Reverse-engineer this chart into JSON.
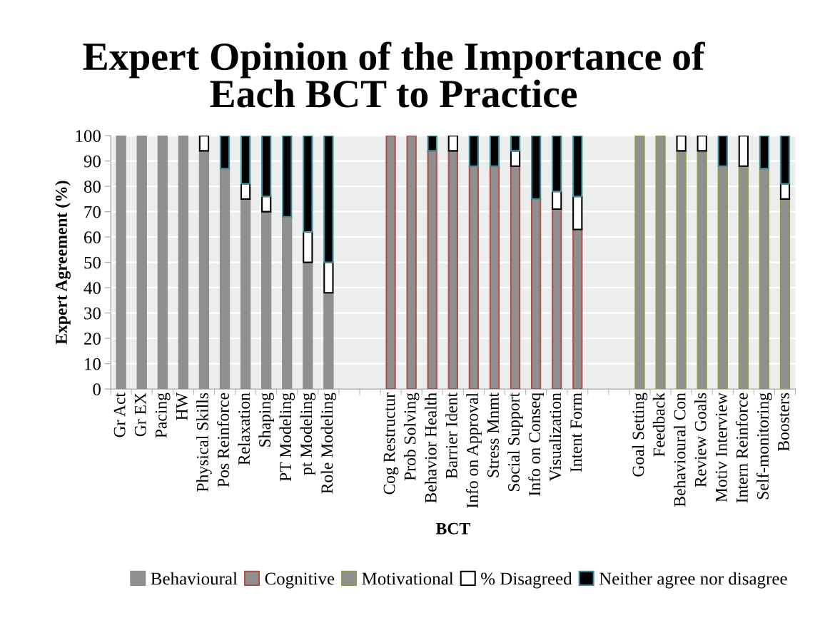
{
  "chart_data": {
    "type": "bar",
    "stacked": true,
    "title": "Expert Opinion of the Importance of\nEach BCT to Practice",
    "xlabel": "BCT",
    "ylabel": "Expert Agreement (%)",
    "categories": [
      "Gr Act",
      "Gr EX",
      "Pacing",
      "HW",
      "Physical Skills",
      "Pos Reinforce",
      "Relaxation",
      "Shaping",
      "PT Modeling",
      "pt Modeling",
      "Role Modeling",
      null,
      null,
      "Cog Restructur",
      "Prob Solving",
      "Behavior Health",
      "Barrier Ident",
      "Info on Approval",
      "Stress Mnmt",
      "Social Support",
      "Info on Conseq",
      "Visualization",
      "Intent Form",
      null,
      null,
      "Goal Setting",
      "Feedback",
      "Behavioural Con",
      "Review Goals",
      "Motiv Interview",
      "Intern Reinforce",
      "Self-monitoring",
      "Boosters"
    ],
    "series": [
      {
        "name": "Behavioural",
        "color": "#8f8f8f",
        "values": [
          100,
          100,
          100,
          100,
          94,
          87,
          75,
          70,
          68,
          50,
          38,
          null,
          null,
          null,
          null,
          null,
          null,
          null,
          null,
          null,
          null,
          null,
          null,
          null,
          null,
          null,
          null,
          null,
          null,
          null,
          null,
          null,
          null
        ]
      },
      {
        "name": "Cognitive",
        "color": "#b0504a",
        "values": [
          null,
          null,
          null,
          null,
          null,
          null,
          null,
          null,
          null,
          null,
          null,
          null,
          null,
          100,
          100,
          94,
          94,
          88,
          88,
          88,
          75,
          71,
          63,
          null,
          null,
          null,
          null,
          null,
          null,
          null,
          null,
          null,
          null
        ]
      },
      {
        "name": "Motivational",
        "color": "#8a9e50",
        "values": [
          null,
          null,
          null,
          null,
          null,
          null,
          null,
          null,
          null,
          null,
          null,
          null,
          null,
          null,
          null,
          null,
          null,
          null,
          null,
          null,
          null,
          null,
          null,
          null,
          null,
          100,
          100,
          94,
          94,
          88,
          88,
          87,
          75
        ]
      },
      {
        "name": "% Disagreed",
        "color": "#ffffff",
        "values": [
          null,
          null,
          null,
          null,
          6,
          null,
          6,
          6,
          null,
          12,
          12,
          null,
          null,
          null,
          null,
          null,
          6,
          null,
          null,
          6,
          null,
          7,
          13,
          null,
          null,
          null,
          null,
          6,
          6,
          null,
          12,
          null,
          6
        ]
      },
      {
        "name": "Neither agree nor disagree",
        "color": "#000000",
        "values": [
          null,
          null,
          null,
          null,
          null,
          13,
          19,
          24,
          32,
          38,
          50,
          null,
          null,
          null,
          null,
          6,
          null,
          12,
          12,
          6,
          25,
          22,
          24,
          null,
          null,
          null,
          null,
          null,
          null,
          12,
          null,
          13,
          19
        ]
      }
    ],
    "ylim": [
      0,
      100
    ],
    "yticks": [
      0,
      10,
      20,
      30,
      40,
      50,
      60,
      70,
      80,
      90,
      100
    ],
    "grid": "y",
    "legend": "bottom"
  }
}
